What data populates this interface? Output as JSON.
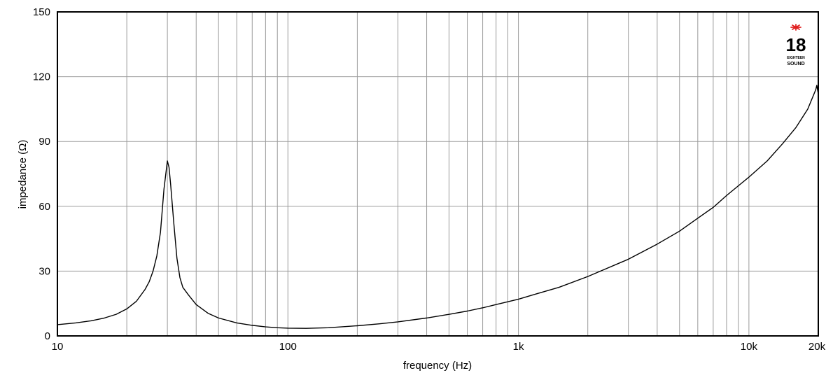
{
  "chart_data": {
    "type": "line",
    "xlabel": "frequency (Hz)",
    "ylabel": "impedance (Ω)",
    "x_scale": "log",
    "xlim": [
      10,
      20000
    ],
    "ylim": [
      0,
      150
    ],
    "grid": true,
    "x_ticks": [
      {
        "value": 10,
        "label": "10"
      },
      {
        "value": 100,
        "label": "100"
      },
      {
        "value": 1000,
        "label": "1k"
      },
      {
        "value": 10000,
        "label": "10k"
      },
      {
        "value": 20000,
        "label": "20k"
      }
    ],
    "y_ticks": [
      {
        "value": 0,
        "label": "0"
      },
      {
        "value": 30,
        "label": "30"
      },
      {
        "value": 60,
        "label": "60"
      },
      {
        "value": 90,
        "label": "90"
      },
      {
        "value": 120,
        "label": "120"
      },
      {
        "value": 150,
        "label": "150"
      }
    ],
    "series": [
      {
        "color": "#000000",
        "points": [
          [
            10,
            5.2
          ],
          [
            12,
            6.0
          ],
          [
            14,
            7.0
          ],
          [
            16,
            8.3
          ],
          [
            18,
            10.0
          ],
          [
            20,
            12.5
          ],
          [
            22,
            16.0
          ],
          [
            24,
            21.5
          ],
          [
            25,
            25.0
          ],
          [
            26,
            30.0
          ],
          [
            27,
            37.0
          ],
          [
            28,
            48.0
          ],
          [
            29,
            68.0
          ],
          [
            30,
            81.0
          ],
          [
            30.5,
            78.0
          ],
          [
            31,
            70.0
          ],
          [
            32,
            52.0
          ],
          [
            33,
            36.0
          ],
          [
            34,
            27.0
          ],
          [
            35,
            22.5
          ],
          [
            37,
            19.0
          ],
          [
            40,
            14.5
          ],
          [
            45,
            10.5
          ],
          [
            50,
            8.3
          ],
          [
            60,
            6.0
          ],
          [
            70,
            4.9
          ],
          [
            80,
            4.2
          ],
          [
            90,
            3.8
          ],
          [
            100,
            3.6
          ],
          [
            120,
            3.5
          ],
          [
            150,
            3.8
          ],
          [
            200,
            4.7
          ],
          [
            250,
            5.6
          ],
          [
            300,
            6.5
          ],
          [
            400,
            8.3
          ],
          [
            500,
            10.0
          ],
          [
            600,
            11.5
          ],
          [
            700,
            13.0
          ],
          [
            800,
            14.5
          ],
          [
            1000,
            17.0
          ],
          [
            1200,
            19.5
          ],
          [
            1500,
            22.5
          ],
          [
            2000,
            27.5
          ],
          [
            3000,
            35.5
          ],
          [
            4000,
            42.5
          ],
          [
            5000,
            48.5
          ],
          [
            6000,
            54.5
          ],
          [
            7000,
            59.5
          ],
          [
            8000,
            65.0
          ],
          [
            9000,
            69.5
          ],
          [
            10000,
            73.5
          ],
          [
            12000,
            81.0
          ],
          [
            14000,
            89.0
          ],
          [
            16000,
            96.5
          ],
          [
            18000,
            105.0
          ],
          [
            19500,
            114.0
          ],
          [
            19700,
            116.0
          ],
          [
            20000,
            112.0
          ]
        ]
      }
    ]
  },
  "logo": {
    "main_text": "18",
    "small_text": "EIGHTEEN",
    "bottom_text": "SOUND",
    "star_color": "#e02020"
  }
}
